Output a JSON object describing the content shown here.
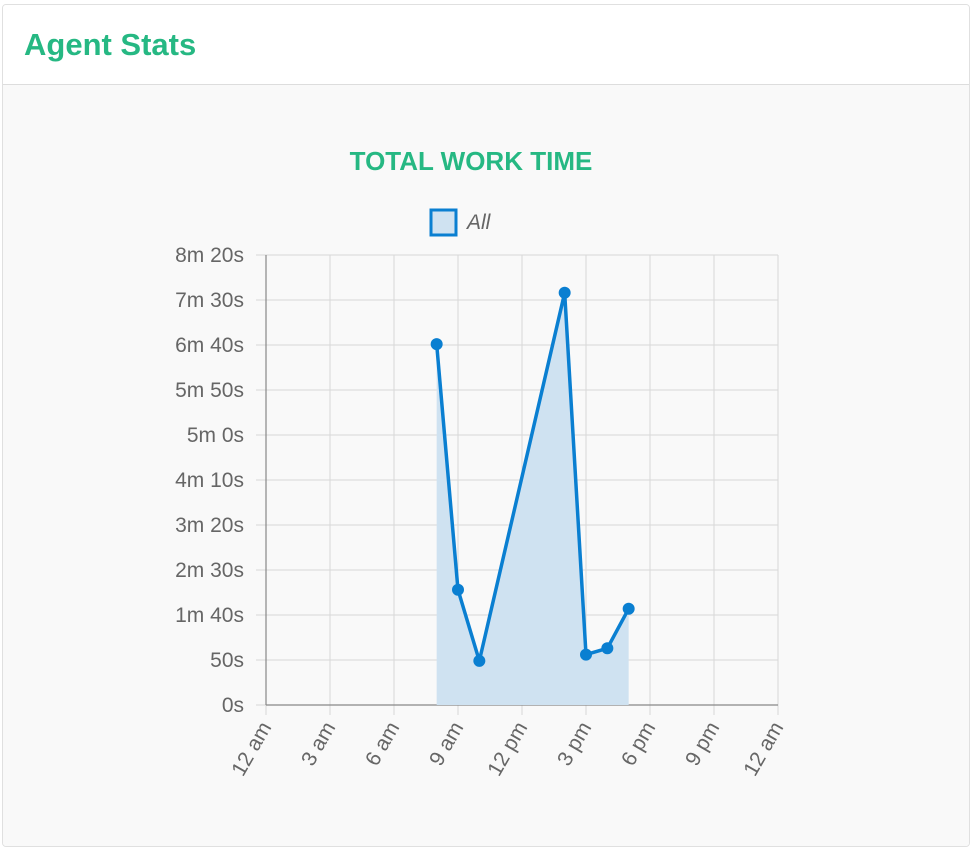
{
  "header": {
    "title": "Agent Stats"
  },
  "colors": {
    "accent": "#26b883",
    "series_line": "#0a7fd1",
    "series_fill": "#cfe2f1",
    "grid": "#d8d8d8"
  },
  "chart_data": {
    "type": "area",
    "title": "TOTAL WORK TIME",
    "legend": {
      "position": "top",
      "entries": [
        "All"
      ]
    },
    "x_axis": {
      "tick_values": [
        0,
        3,
        6,
        9,
        12,
        15,
        18,
        21,
        24
      ],
      "tick_labels": [
        "12 am",
        "3 am",
        "6 am",
        "9 am",
        "12 pm",
        "3 pm",
        "6 pm",
        "9 pm",
        "12 am"
      ],
      "range": [
        0,
        24
      ]
    },
    "y_axis": {
      "tick_values": [
        0,
        50,
        100,
        150,
        200,
        250,
        300,
        350,
        400,
        450,
        500
      ],
      "tick_labels": [
        "0s",
        "50s",
        "1m 40s",
        "2m 30s",
        "3m 20s",
        "4m 10s",
        "5m 0s",
        "5m 50s",
        "6m 40s",
        "7m 30s",
        "8m 20s"
      ],
      "range": [
        0,
        500
      ]
    },
    "grid": true,
    "series": [
      {
        "name": "All",
        "x": [
          8,
          9,
          10,
          14,
          15,
          16,
          17
        ],
        "y": [
          401,
          128,
          49,
          458,
          56,
          63,
          107
        ]
      }
    ]
  }
}
